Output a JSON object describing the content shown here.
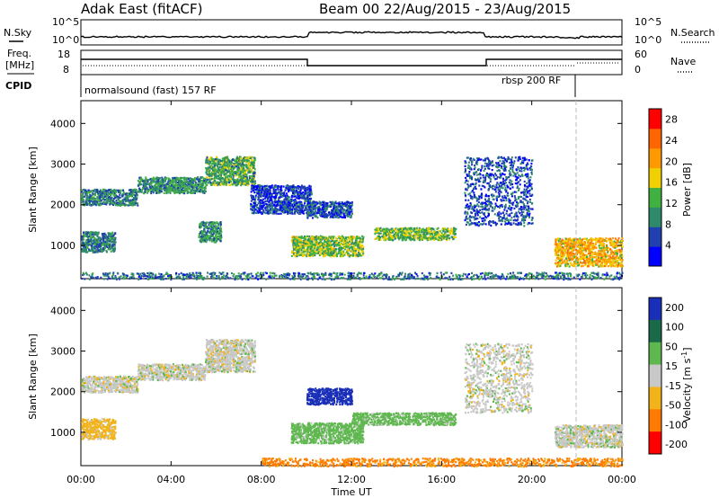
{
  "header": {
    "station": "Adak East (fitACF)",
    "beam_info": "Beam 00  22/Aug/2015 - 23/Aug/2015"
  },
  "top_panels": {
    "nsky_label": "N.Sky",
    "nsearch_label": "N.Search",
    "noise_ticks_left": [
      "10^5",
      "10^0"
    ],
    "noise_ticks_right": [
      "10^5",
      "10^0"
    ],
    "freq_label_1": "Freq.",
    "freq_label_2": "[MHz]",
    "freq_ticks": [
      "18",
      "8"
    ],
    "nave_label": "Nave",
    "nave_ticks": [
      "60",
      "0"
    ],
    "cpid_label": "CPID",
    "cpid_segments": [
      {
        "label": "normalsound (fast) 157 RF",
        "start_hour": 0,
        "end_hour": 21.9
      },
      {
        "label": "rbsp 200 RF",
        "start_hour": 21.9,
        "end_hour": 24
      }
    ]
  },
  "chart_data": [
    {
      "type": "heatmap",
      "title": "",
      "xlabel": "",
      "ylabel": "Slant Range [km]",
      "x_ticks": [
        "00:00",
        "04:00",
        "08:00",
        "12:00",
        "16:00",
        "20:00",
        "00:00"
      ],
      "xlim": [
        0,
        24
      ],
      "y_ticks": [
        1000,
        2000,
        3000,
        4000
      ],
      "ylim": [
        180,
        4560
      ],
      "colorbar_label": "Power [dB]",
      "colorbar_ticks": [
        4,
        8,
        12,
        16,
        20,
        24,
        28
      ],
      "colorbar_range": [
        0,
        30
      ],
      "scatter_regions": [
        {
          "t0": 0.0,
          "t1": 2.5,
          "r0": 2000,
          "r1": 2400,
          "value": 9
        },
        {
          "t0": 2.5,
          "t1": 5.5,
          "r0": 2300,
          "r1": 2700,
          "value": 10
        },
        {
          "t0": 5.5,
          "t1": 7.7,
          "r0": 2500,
          "r1": 3200,
          "value": 12
        },
        {
          "t0": 0.0,
          "t1": 1.5,
          "r0": 850,
          "r1": 1350,
          "value": 9
        },
        {
          "t0": 5.2,
          "t1": 6.2,
          "r0": 1100,
          "r1": 1600,
          "value": 10
        },
        {
          "t0": 7.5,
          "t1": 10.2,
          "r0": 1800,
          "r1": 2500,
          "value": 5
        },
        {
          "t0": 9.3,
          "t1": 12.5,
          "r0": 750,
          "r1": 1250,
          "value": 14
        },
        {
          "t0": 10.0,
          "t1": 12.0,
          "r0": 1700,
          "r1": 2100,
          "value": 6
        },
        {
          "t0": 13.0,
          "t1": 16.6,
          "r0": 1150,
          "r1": 1450,
          "value": 13
        },
        {
          "t0": 17.0,
          "t1": 20.0,
          "r0": 1500,
          "r1": 3200,
          "value": 6
        },
        {
          "t0": 21.0,
          "t1": 24.0,
          "r0": 500,
          "r1": 1200,
          "value": 19
        },
        {
          "t0": 0.0,
          "t1": 24.0,
          "r0": 180,
          "r1": 350,
          "value": 8
        }
      ]
    },
    {
      "type": "heatmap",
      "title": "",
      "xlabel": "Time UT",
      "ylabel": "Slant Range [km]",
      "x_ticks": [
        "00:00",
        "04:00",
        "08:00",
        "12:00",
        "16:00",
        "20:00",
        "00:00"
      ],
      "xlim": [
        0,
        24
      ],
      "y_ticks": [
        1000,
        2000,
        3000,
        4000
      ],
      "ylim": [
        180,
        4560
      ],
      "colorbar_label": "Velocity [m s^-1]",
      "colorbar_ticks": [
        200,
        100,
        50,
        15,
        -15,
        -50,
        -100,
        -200
      ],
      "scatter_regions": [
        {
          "t0": 0.0,
          "t1": 2.5,
          "r0": 2000,
          "r1": 2400,
          "value": 0
        },
        {
          "t0": 2.5,
          "t1": 5.5,
          "r0": 2300,
          "r1": 2700,
          "value": 0
        },
        {
          "t0": 5.5,
          "t1": 7.7,
          "r0": 2500,
          "r1": 3300,
          "value": 0
        },
        {
          "t0": 0.0,
          "t1": 1.5,
          "r0": 850,
          "r1": 1350,
          "value": -30
        },
        {
          "t0": 9.3,
          "t1": 12.5,
          "r0": 750,
          "r1": 1250,
          "value": 30
        },
        {
          "t0": 10.0,
          "t1": 12.0,
          "r0": 1700,
          "r1": 2100,
          "value": 120
        },
        {
          "t0": 12.0,
          "t1": 16.6,
          "r0": 1200,
          "r1": 1500,
          "value": 30
        },
        {
          "t0": 17.0,
          "t1": 20.0,
          "r0": 1500,
          "r1": 3200,
          "value": 0
        },
        {
          "t0": 21.0,
          "t1": 24.0,
          "r0": 650,
          "r1": 1200,
          "value": 0
        },
        {
          "t0": 8.0,
          "t1": 24.0,
          "r0": 180,
          "r1": 380,
          "value": -60
        }
      ]
    }
  ],
  "colors": {
    "power_scale": [
      "#0000ff",
      "#2040b0",
      "#2f8a6b",
      "#40b040",
      "#f0d000",
      "#ff9900",
      "#ff6600",
      "#ff0000"
    ],
    "velocity_scale": [
      "#1a2fb8",
      "#1a6a4a",
      "#5fb84f",
      "#c8c8c8",
      "#f2b21a",
      "#ff7a00",
      "#ff0000"
    ]
  }
}
